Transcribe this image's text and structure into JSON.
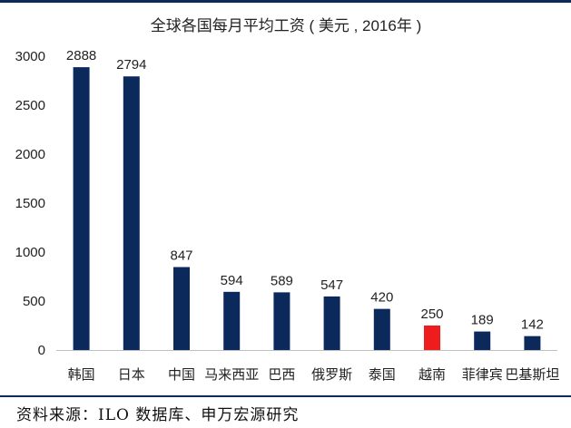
{
  "chart_data": {
    "type": "bar",
    "title": "全球各国每月平均工资 ( 美元 , 2016年 )",
    "categories": [
      "韩国",
      "日本",
      "中国",
      "马来西亚",
      "巴西",
      "俄罗斯",
      "泰国",
      "越南",
      "菲律宾",
      "巴基斯坦"
    ],
    "values": [
      2888,
      2794,
      847,
      594,
      589,
      547,
      420,
      250,
      189,
      142
    ],
    "data_labels": [
      "2888",
      "2794",
      "847",
      "594",
      "589",
      "547",
      "420",
      "250",
      "189",
      "142"
    ],
    "highlight_category": "越南",
    "ylim": [
      0,
      3000
    ],
    "yticks": [
      "0",
      "500",
      "1000",
      "1500",
      "2000",
      "2500",
      "3000"
    ],
    "xlabel": "",
    "ylabel": "",
    "grid": false,
    "legend": "none"
  },
  "colors": {
    "bar": "#0b2a5b",
    "highlight": "#ee1c1c",
    "rule": "#0b2a5b",
    "text": "#222222"
  },
  "source": "资料来源：ILO 数据库、申万宏源研究"
}
